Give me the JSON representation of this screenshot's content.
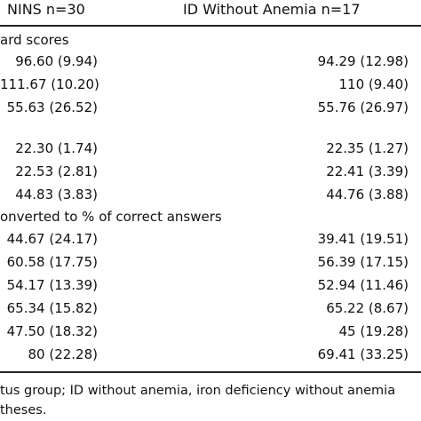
{
  "header": {
    "col1": "NINS n=30",
    "col2": "ID Without Anemia n=17"
  },
  "sections": [
    {
      "label": "ard scores",
      "rows": [
        {
          "a": "96.60 (9.94)",
          "b": "94.29 (12.98)"
        },
        {
          "a": "111.67 (10.20)",
          "b": "110 (9.40)"
        },
        {
          "a": "55.63 (26.52)",
          "b": "55.76 (26.97)"
        }
      ]
    },
    {
      "label": "",
      "rows": [
        {
          "a": "22.30 (1.74)",
          "b": "22.35 (1.27)"
        },
        {
          "a": "22.53 (2.81)",
          "b": "22.41 (3.39)"
        },
        {
          "a": "44.83 (3.83)",
          "b": "44.76 (3.88)"
        }
      ]
    },
    {
      "label": "onverted to % of correct answers",
      "rows": [
        {
          "a": "44.67 (24.17)",
          "b": "39.41 (19.51)"
        },
        {
          "a": "60.58 (17.75)",
          "b": "56.39 (17.15)"
        },
        {
          "a": "54.17 (13.39)",
          "b": "52.94 (11.46)"
        },
        {
          "a": "65.34 (15.82)",
          "b": "65.22 (8.67)"
        },
        {
          "a": "47.50 (18.32)",
          "b": "45 (19.28)"
        },
        {
          "a": "80 (22.28)",
          "b": "69.41 (33.25)"
        }
      ]
    }
  ],
  "footnotes": [
    "tus group; ID without anemia, iron deficiency without anemia",
    "theses."
  ]
}
